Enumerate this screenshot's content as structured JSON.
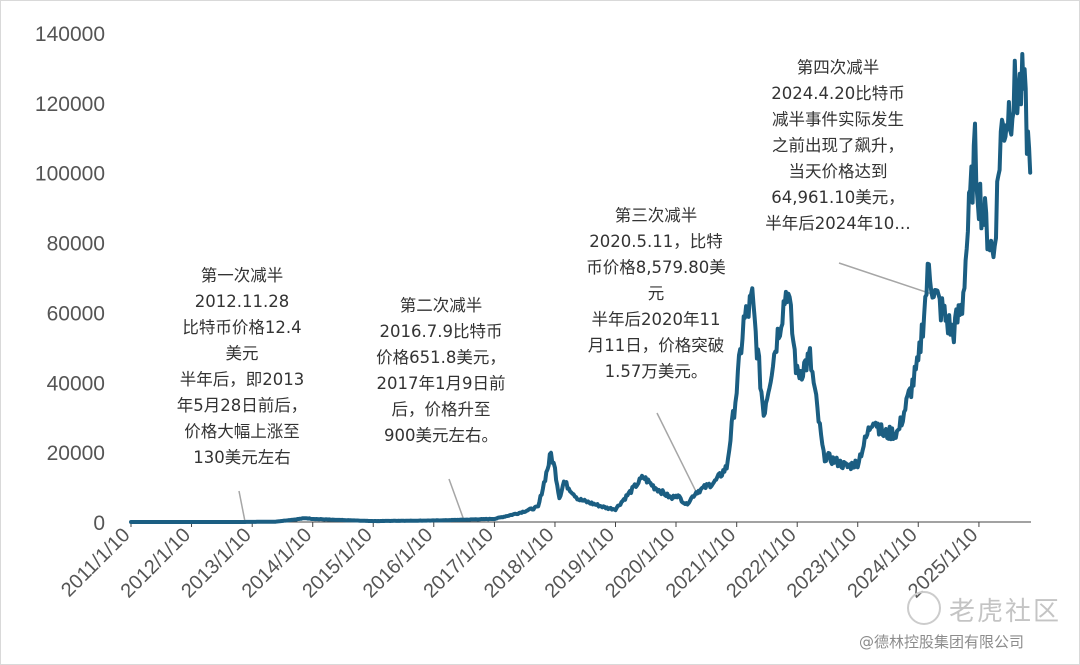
{
  "chart_data": {
    "type": "line",
    "series_color": "#1b5e82",
    "ylim": [
      0,
      140000
    ],
    "yticks": [
      "0",
      "20000",
      "40000",
      "60000",
      "80000",
      "100000",
      "120000",
      "140000"
    ],
    "xticks": [
      "2011/1/10",
      "2012/1/10",
      "2013/1/10",
      "2014/1/10",
      "2015/1/10",
      "2016/1/10",
      "2017/1/10",
      "2018/1/10",
      "2019/1/10",
      "2020/1/10",
      "2021/1/10",
      "2022/1/10",
      "2023/1/10",
      "2024/1/10",
      "2025/1/10"
    ],
    "x": [
      "2011-01-10",
      "2012-01-10",
      "2012-11-28",
      "2013-06-01",
      "2013-12-01",
      "2014-01-10",
      "2014-06-01",
      "2015-01-10",
      "2016-01-10",
      "2016-07-09",
      "2017-01-10",
      "2017-06-01",
      "2017-10-01",
      "2017-12-17",
      "2018-01-10",
      "2018-02-06",
      "2018-03-05",
      "2018-06-01",
      "2018-11-20",
      "2019-01-10",
      "2019-06-26",
      "2019-09-01",
      "2019-12-17",
      "2020-01-10",
      "2020-03-12",
      "2020-05-11",
      "2020-09-01",
      "2020-11-11",
      "2021-01-10",
      "2021-02-21",
      "2021-04-14",
      "2021-06-22",
      "2021-09-07",
      "2021-11-10",
      "2022-01-10",
      "2022-03-28",
      "2022-06-18",
      "2022-11-09",
      "2023-01-10",
      "2023-04-14",
      "2023-06-15",
      "2023-09-11",
      "2024-01-10",
      "2024-03-14",
      "2024-04-20",
      "2024-08-05",
      "2024-10-01",
      "2024-11-11",
      "2024-12-17",
      "2025-01-10",
      "2025-04-08",
      "2025-05-22",
      "2025-08-14",
      "2025-10-06",
      "2025-11-15"
    ],
    "values": [
      0.3,
      7,
      12.4,
      100,
      1100,
      900,
      600,
      270,
      430,
      652,
      900,
      2500,
      4300,
      19500,
      15000,
      7000,
      11500,
      6500,
      4000,
      3700,
      12900,
      10000,
      6700,
      8000,
      5000,
      8580,
      11500,
      15700,
      38000,
      57000,
      63500,
      31000,
      52000,
      67500,
      42000,
      47000,
      19000,
      15800,
      17000,
      30000,
      25000,
      25800,
      45000,
      73000,
      64961,
      54000,
      62000,
      88000,
      106000,
      94000,
      76000,
      111000,
      123000,
      124500,
      100000
    ],
    "annotations": [
      "第一次减半\n2012.11.28\n比特币价格12.4\n美元\n半年后，即2013\n年5月28日前后，\n价格大幅上涨至\n130美元左右",
      "第二次减半\n2016.7.9比特币\n价格651.8美元，\n2017年1月9日前\n后，价格升至\n900美元左右。",
      "第三次减半\n2020.5.11，比特\n币价格8,579.80美\n元\n半年后2020年11\n月11日，价格突破\n1.57万美元。",
      "第四次减半\n2024.4.20比特币\n减半事件实际发生\n之前出现了飙升，\n当天价格达到\n64,961.10美元，\n半年后2024年10…"
    ]
  },
  "watermark": "老虎社区",
  "copyright": "@德林控股集团有限公司"
}
